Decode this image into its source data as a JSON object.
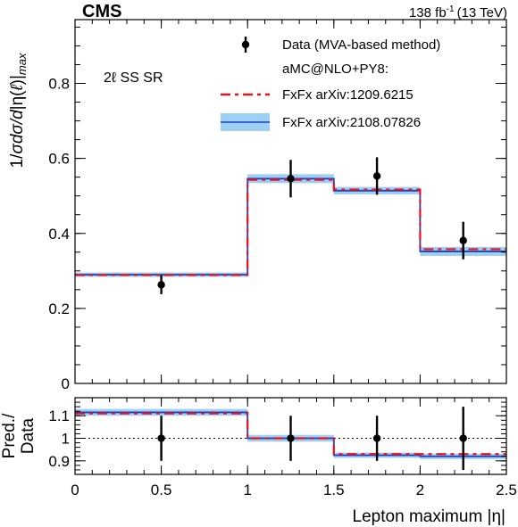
{
  "header": {
    "experiment": "CMS",
    "lumi_value": "138 fb",
    "lumi_exp": "-1",
    "lumi_energy": "(13 TeV)"
  },
  "region_label": "2ℓ SS SR",
  "legend": {
    "data": "Data (MVA-based method)",
    "group": "aMC@NLO+PY8:",
    "fxfx_old": "FxFx arXiv:1209.6215",
    "fxfx_new": "FxFx arXiv:2108.07826"
  },
  "colors": {
    "data": "#000000",
    "fxfx_old": "#e8141c",
    "fxfx_new_line": "#1f3fbf",
    "fxfx_new_band": "#9ecff5",
    "reference_line": "#000000"
  },
  "chart_data": [
    {
      "panel": "main",
      "type": "line",
      "ylabel": "1/σdσ/d|η(ℓ)|max",
      "xlim": [
        0,
        2.5
      ],
      "ylim": [
        0,
        0.97
      ],
      "x_ticks": [
        0,
        0.5,
        1,
        1.5,
        2,
        2.5
      ],
      "y_ticks": [
        "0",
        "0.2",
        "0.4",
        "0.6",
        "0.8"
      ],
      "bin_edges": [
        0,
        1,
        1.5,
        2,
        2.5
      ],
      "data": {
        "name": "Data (MVA-based method)",
        "x": [
          0.5,
          1.25,
          1.75,
          2.25
        ],
        "y": [
          0.263,
          0.546,
          0.553,
          0.381
        ],
        "err_up": [
          0.025,
          0.05,
          0.05,
          0.05
        ],
        "err_down": [
          0.025,
          0.05,
          0.05,
          0.05
        ]
      },
      "series": [
        {
          "name": "FxFx arXiv:1209.6215",
          "values": [
            0.289,
            0.543,
            0.517,
            0.358
          ]
        },
        {
          "name": "FxFx arXiv:2108.07826",
          "values": [
            0.29,
            0.546,
            0.514,
            0.352
          ],
          "band_half_width": [
            0.006,
            0.012,
            0.01,
            0.012
          ]
        }
      ]
    },
    {
      "panel": "ratio",
      "type": "line",
      "ylabel": "Pred./ Data",
      "xlabel": "Lepton maximum |η|",
      "xlim": [
        0,
        2.5
      ],
      "ylim": [
        0.84,
        1.18
      ],
      "x_ticks": [
        "0",
        "0.5",
        "1",
        "1.5",
        "2",
        "2.5"
      ],
      "y_ticks": [
        "0.9",
        "1",
        "1.1"
      ],
      "bin_edges": [
        0,
        1,
        1.5,
        2,
        2.5
      ],
      "reference": 1.0,
      "data": {
        "x": [
          0.5,
          1.25,
          1.75,
          2.25
        ],
        "y": [
          1.0,
          1.0,
          1.0,
          1.0
        ],
        "err_up": [
          0.1,
          0.1,
          0.1,
          0.14
        ],
        "err_down": [
          0.1,
          0.1,
          0.1,
          0.14
        ]
      },
      "series": [
        {
          "name": "FxFx arXiv:1209.6215",
          "values": [
            1.11,
            1.0,
            0.93,
            0.93
          ]
        },
        {
          "name": "FxFx arXiv:2108.07826",
          "values": [
            1.115,
            1.0,
            0.925,
            0.92
          ],
          "band_half_width": [
            0.015,
            0.015,
            0.012,
            0.012
          ]
        }
      ]
    }
  ]
}
